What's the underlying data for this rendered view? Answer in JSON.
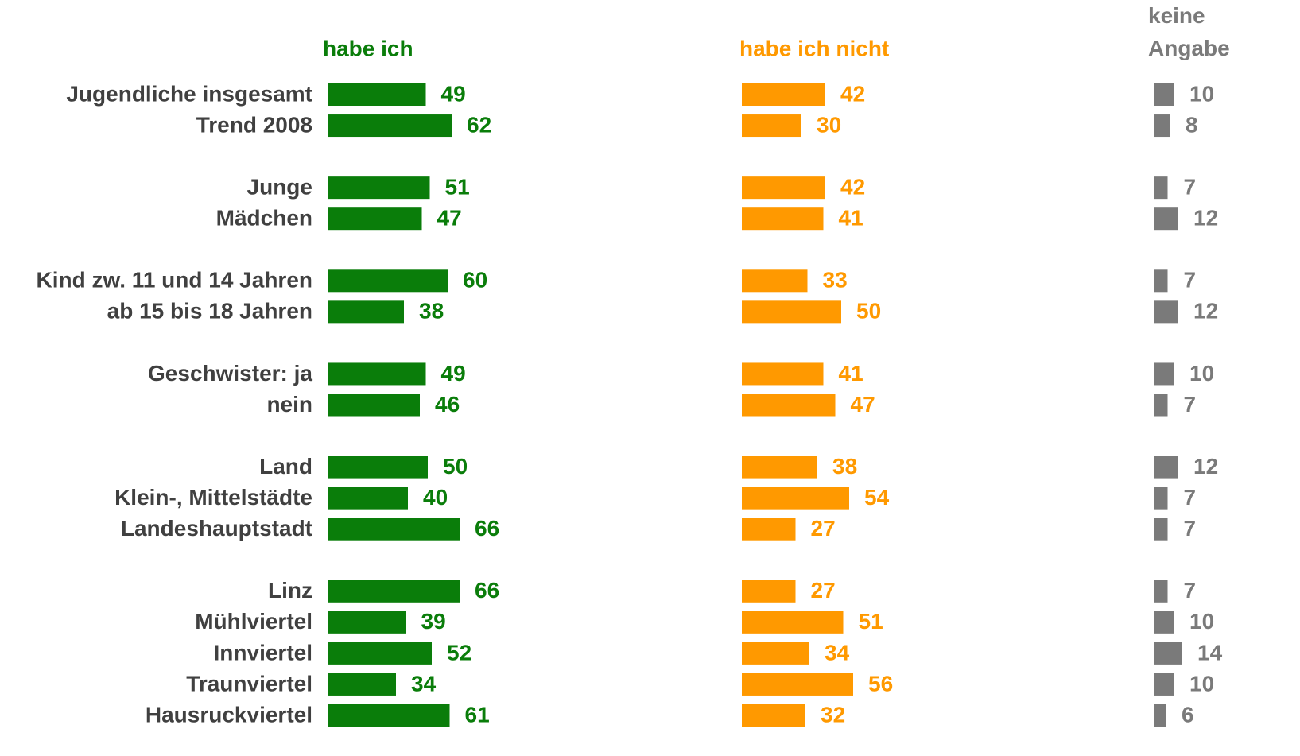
{
  "chart_data": {
    "type": "bar",
    "orientation": "horizontal",
    "categories": [
      "Jugendliche insgesamt",
      "Trend 2008",
      null,
      "Junge",
      "Mädchen",
      null,
      "Kind zw. 11 und 14 Jahren",
      "ab 15 bis 18 Jahren",
      null,
      "Geschwister: ja",
      "nein",
      null,
      "Land",
      "Klein-, Mittelstädte",
      "Landeshauptstadt",
      null,
      "Linz",
      "Mühlviertel",
      "Innviertel",
      "Traunviertel",
      "Hausruckviertel"
    ],
    "series": [
      {
        "name": "habe ich",
        "color": "#0a7d0a",
        "values": [
          49,
          62,
          null,
          51,
          47,
          null,
          60,
          38,
          null,
          49,
          46,
          null,
          50,
          40,
          66,
          null,
          66,
          39,
          52,
          34,
          61
        ]
      },
      {
        "name": "habe ich nicht",
        "color": "#ff9900",
        "values": [
          42,
          30,
          null,
          42,
          41,
          null,
          33,
          50,
          null,
          41,
          47,
          null,
          38,
          54,
          27,
          null,
          27,
          51,
          34,
          56,
          32
        ]
      },
      {
        "name": "keine Angabe",
        "color": "#7a7a7a",
        "values": [
          10,
          8,
          null,
          7,
          12,
          null,
          7,
          12,
          null,
          10,
          7,
          null,
          12,
          7,
          7,
          null,
          7,
          10,
          14,
          10,
          6
        ]
      }
    ]
  }
}
